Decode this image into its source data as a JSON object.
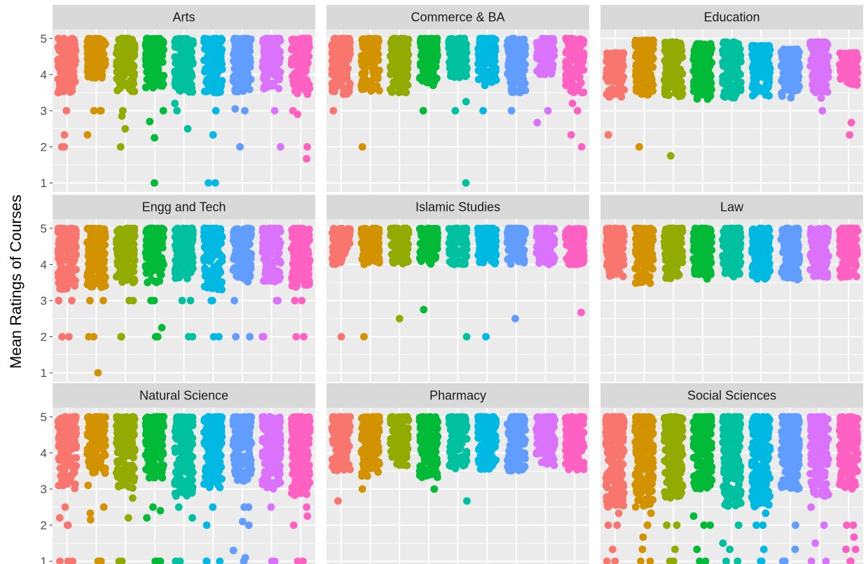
{
  "chart_data": {
    "type": "scatter",
    "subtype": "faceted jittered strip plot",
    "title": "",
    "xlabel": "",
    "ylabel": "Mean Ratings of Courses",
    "ylim": [
      0.75,
      5.25
    ],
    "yticks": [
      1,
      2,
      3,
      4,
      5
    ],
    "x_groups": 9,
    "x_tick_labels_visible": false,
    "grid": true,
    "legend": "none",
    "group_colors": [
      "#F8766D",
      "#D39200",
      "#93AA00",
      "#00BA38",
      "#00C19F",
      "#00B9E3",
      "#619CFF",
      "#DB72FB",
      "#FF61C3"
    ],
    "panel_background": "#EBEBEB",
    "strip_background": "#D9D9D9",
    "facets": [
      {
        "name": "Arts",
        "groups": [
          {
            "dense_min": 3.5,
            "dense_max": 5.0,
            "outliers": [
              3.0,
              2.33,
              2.0,
              2.0
            ]
          },
          {
            "dense_min": 3.9,
            "dense_max": 5.0,
            "outliers": [
              3.0,
              3.0,
              2.33,
              3.0
            ]
          },
          {
            "dense_min": 3.5,
            "dense_max": 5.0,
            "outliers": [
              3.0,
              2.85,
              2.5,
              2.0
            ]
          },
          {
            "dense_min": 3.6,
            "dense_max": 5.0,
            "outliers": [
              3.0,
              2.7,
              2.25,
              1.0
            ]
          },
          {
            "dense_min": 3.5,
            "dense_max": 5.0,
            "outliers": [
              3.2,
              3.0,
              2.5
            ]
          },
          {
            "dense_min": 3.5,
            "dense_max": 5.0,
            "outliers": [
              3.0,
              2.33,
              1.0,
              1.0
            ]
          },
          {
            "dense_min": 3.5,
            "dense_max": 5.0,
            "outliers": [
              3.05,
              3.0,
              2.0
            ]
          },
          {
            "dense_min": 3.6,
            "dense_max": 5.0,
            "outliers": [
              3.0,
              2.0
            ]
          },
          {
            "dense_min": 3.45,
            "dense_max": 5.0,
            "outliers": [
              3.0,
              2.9,
              2.0,
              1.67
            ]
          }
        ]
      },
      {
        "name": "Commerce & BA",
        "groups": [
          {
            "dense_min": 3.4,
            "dense_max": 5.0,
            "outliers": [
              3.0
            ]
          },
          {
            "dense_min": 3.5,
            "dense_max": 5.0,
            "outliers": [
              2.0
            ]
          },
          {
            "dense_min": 3.5,
            "dense_max": 5.0,
            "outliers": []
          },
          {
            "dense_min": 3.7,
            "dense_max": 5.0,
            "outliers": [
              3.0
            ]
          },
          {
            "dense_min": 3.9,
            "dense_max": 5.0,
            "outliers": [
              3.25,
              3.0,
              1.0
            ]
          },
          {
            "dense_min": 3.7,
            "dense_max": 5.0,
            "outliers": [
              3.0
            ]
          },
          {
            "dense_min": 3.5,
            "dense_max": 5.0,
            "outliers": [
              3.0
            ]
          },
          {
            "dense_min": 4.0,
            "dense_max": 5.0,
            "outliers": [
              3.0,
              2.67
            ]
          },
          {
            "dense_min": 3.5,
            "dense_max": 5.0,
            "outliers": [
              3.2,
              3.0,
              2.33,
              2.0
            ]
          }
        ]
      },
      {
        "name": "Education",
        "groups": [
          {
            "dense_min": 3.35,
            "dense_max": 4.6,
            "outliers": [
              2.33
            ]
          },
          {
            "dense_min": 3.35,
            "dense_max": 4.95,
            "outliers": [
              2.0
            ]
          },
          {
            "dense_min": 3.35,
            "dense_max": 4.9,
            "outliers": [
              1.75
            ]
          },
          {
            "dense_min": 3.3,
            "dense_max": 4.85,
            "outliers": []
          },
          {
            "dense_min": 3.35,
            "dense_max": 4.9,
            "outliers": []
          },
          {
            "dense_min": 3.35,
            "dense_max": 4.8,
            "outliers": []
          },
          {
            "dense_min": 3.35,
            "dense_max": 4.7,
            "outliers": []
          },
          {
            "dense_min": 3.5,
            "dense_max": 4.9,
            "outliers": [
              3.35,
              3.0
            ]
          },
          {
            "dense_min": 3.7,
            "dense_max": 4.6,
            "outliers": [
              2.67,
              2.33
            ]
          }
        ]
      },
      {
        "name": "Engg and Tech",
        "groups": [
          {
            "dense_min": 3.3,
            "dense_max": 5.0,
            "outliers": [
              3.0,
              3.0,
              2.0,
              2.0
            ]
          },
          {
            "dense_min": 3.35,
            "dense_max": 5.0,
            "outliers": [
              3.0,
              3.0,
              2.0,
              2.0,
              1.0
            ]
          },
          {
            "dense_min": 3.5,
            "dense_max": 5.0,
            "outliers": [
              3.0,
              3.0,
              2.0,
              2.0
            ]
          },
          {
            "dense_min": 3.5,
            "dense_max": 5.0,
            "outliers": [
              3.0,
              3.0,
              2.25,
              2.0,
              2.0
            ]
          },
          {
            "dense_min": 3.6,
            "dense_max": 5.0,
            "outliers": [
              3.0,
              3.0,
              2.0,
              2.0
            ]
          },
          {
            "dense_min": 3.3,
            "dense_max": 5.0,
            "outliers": [
              3.0,
              3.0,
              2.0,
              2.0
            ]
          },
          {
            "dense_min": 3.5,
            "dense_max": 5.0,
            "outliers": [
              3.0,
              2.0,
              2.0
            ]
          },
          {
            "dense_min": 3.5,
            "dense_max": 5.0,
            "outliers": [
              3.0,
              3.0,
              2.0,
              2.0
            ]
          },
          {
            "dense_min": 3.35,
            "dense_max": 5.0,
            "outliers": [
              3.0,
              3.0,
              2.0,
              2.0
            ]
          }
        ]
      },
      {
        "name": "Islamic Studies",
        "groups": [
          {
            "dense_min": 4.0,
            "dense_max": 5.0,
            "outliers": [
              2.0
            ]
          },
          {
            "dense_min": 4.0,
            "dense_max": 5.0,
            "outliers": [
              2.0
            ]
          },
          {
            "dense_min": 4.0,
            "dense_max": 5.0,
            "outliers": [
              2.5
            ]
          },
          {
            "dense_min": 4.0,
            "dense_max": 5.0,
            "outliers": [
              2.75
            ]
          },
          {
            "dense_min": 4.0,
            "dense_max": 5.0,
            "outliers": [
              2.0
            ]
          },
          {
            "dense_min": 4.0,
            "dense_max": 5.0,
            "outliers": [
              2.0
            ]
          },
          {
            "dense_min": 4.0,
            "dense_max": 5.0,
            "outliers": [
              2.5
            ]
          },
          {
            "dense_min": 4.0,
            "dense_max": 5.0,
            "outliers": []
          },
          {
            "dense_min": 4.0,
            "dense_max": 5.0,
            "outliers": [
              2.67
            ]
          }
        ]
      },
      {
        "name": "Law",
        "groups": [
          {
            "dense_min": 3.65,
            "dense_max": 5.0,
            "outliers": []
          },
          {
            "dense_min": 3.45,
            "dense_max": 5.0,
            "outliers": []
          },
          {
            "dense_min": 3.6,
            "dense_max": 5.0,
            "outliers": []
          },
          {
            "dense_min": 3.6,
            "dense_max": 5.0,
            "outliers": []
          },
          {
            "dense_min": 3.65,
            "dense_max": 5.0,
            "outliers": []
          },
          {
            "dense_min": 3.6,
            "dense_max": 5.0,
            "outliers": []
          },
          {
            "dense_min": 3.55,
            "dense_max": 5.0,
            "outliers": []
          },
          {
            "dense_min": 3.65,
            "dense_max": 5.0,
            "outliers": []
          },
          {
            "dense_min": 3.6,
            "dense_max": 5.0,
            "outliers": []
          }
        ]
      },
      {
        "name": "Natural Science",
        "groups": [
          {
            "dense_min": 3.0,
            "dense_max": 5.0,
            "outliers": [
              2.5,
              2.2,
              2.0,
              2.0,
              1.0,
              1.0,
              1.0
            ]
          },
          {
            "dense_min": 3.4,
            "dense_max": 5.0,
            "outliers": [
              3.1,
              2.5,
              2.33,
              2.15,
              1.0,
              1.0,
              1.0
            ]
          },
          {
            "dense_min": 3.0,
            "dense_max": 5.0,
            "outliers": [
              2.75,
              2.2,
              1.0,
              1.0
            ]
          },
          {
            "dense_min": 3.3,
            "dense_max": 5.0,
            "outliers": [
              2.5,
              2.4,
              2.2,
              1.0,
              1.0,
              1.0
            ]
          },
          {
            "dense_min": 2.8,
            "dense_max": 5.0,
            "outliers": [
              2.5,
              2.2,
              1.0,
              1.0,
              1.0
            ]
          },
          {
            "dense_min": 3.0,
            "dense_max": 5.0,
            "outliers": [
              2.5,
              2.0,
              1.0,
              1.0,
              1.0
            ]
          },
          {
            "dense_min": 3.2,
            "dense_max": 5.0,
            "outliers": [
              2.5,
              2.5,
              2.1,
              2.0,
              1.3,
              1.1,
              1.0
            ]
          },
          {
            "dense_min": 3.0,
            "dense_max": 5.0,
            "outliers": [
              2.5,
              1.0,
              1.0
            ]
          },
          {
            "dense_min": 2.7,
            "dense_max": 5.0,
            "outliers": [
              2.5,
              2.25,
              2.0,
              1.0,
              1.0
            ]
          }
        ]
      },
      {
        "name": "Pharmacy",
        "groups": [
          {
            "dense_min": 3.5,
            "dense_max": 5.0,
            "outliers": [
              2.67
            ]
          },
          {
            "dense_min": 3.35,
            "dense_max": 5.0,
            "outliers": [
              3.0
            ]
          },
          {
            "dense_min": 3.65,
            "dense_max": 5.0,
            "outliers": []
          },
          {
            "dense_min": 3.3,
            "dense_max": 5.0,
            "outliers": [
              3.0
            ]
          },
          {
            "dense_min": 3.5,
            "dense_max": 5.0,
            "outliers": [
              2.67
            ]
          },
          {
            "dense_min": 3.55,
            "dense_max": 5.0,
            "outliers": []
          },
          {
            "dense_min": 3.5,
            "dense_max": 5.0,
            "outliers": []
          },
          {
            "dense_min": 3.65,
            "dense_max": 5.0,
            "outliers": []
          },
          {
            "dense_min": 3.5,
            "dense_max": 5.0,
            "outliers": []
          }
        ]
      },
      {
        "name": "Social Sciences",
        "groups": [
          {
            "dense_min": 2.5,
            "dense_max": 5.0,
            "outliers": [
              2.33,
              2.0,
              2.0,
              1.33,
              1.0,
              1.0
            ]
          },
          {
            "dense_min": 2.5,
            "dense_max": 5.0,
            "outliers": [
              2.33,
              2.0,
              2.0,
              1.67,
              1.33,
              1.0,
              1.0
            ]
          },
          {
            "dense_min": 2.7,
            "dense_max": 5.0,
            "outliers": [
              2.0,
              2.0,
              1.33,
              1.0,
              1.0
            ]
          },
          {
            "dense_min": 3.0,
            "dense_max": 5.0,
            "outliers": [
              2.25,
              2.0,
              2.0,
              1.33,
              1.0,
              1.0
            ]
          },
          {
            "dense_min": 2.5,
            "dense_max": 5.0,
            "outliers": [
              2.0,
              1.5,
              1.33,
              1.0,
              1.0
            ]
          },
          {
            "dense_min": 2.5,
            "dense_max": 5.0,
            "outliers": [
              2.67,
              2.33,
              2.0,
              2.0,
              1.33,
              1.0,
              1.0
            ]
          },
          {
            "dense_min": 3.0,
            "dense_max": 5.0,
            "outliers": [
              2.0,
              1.33,
              1.0,
              1.0
            ]
          },
          {
            "dense_min": 2.8,
            "dense_max": 5.0,
            "outliers": [
              2.5,
              2.0,
              1.5,
              1.0,
              1.0
            ]
          },
          {
            "dense_min": 3.0,
            "dense_max": 5.0,
            "outliers": [
              2.0,
              2.0,
              1.67,
              1.33,
              1.33,
              1.0,
              1.0
            ]
          }
        ]
      }
    ]
  }
}
